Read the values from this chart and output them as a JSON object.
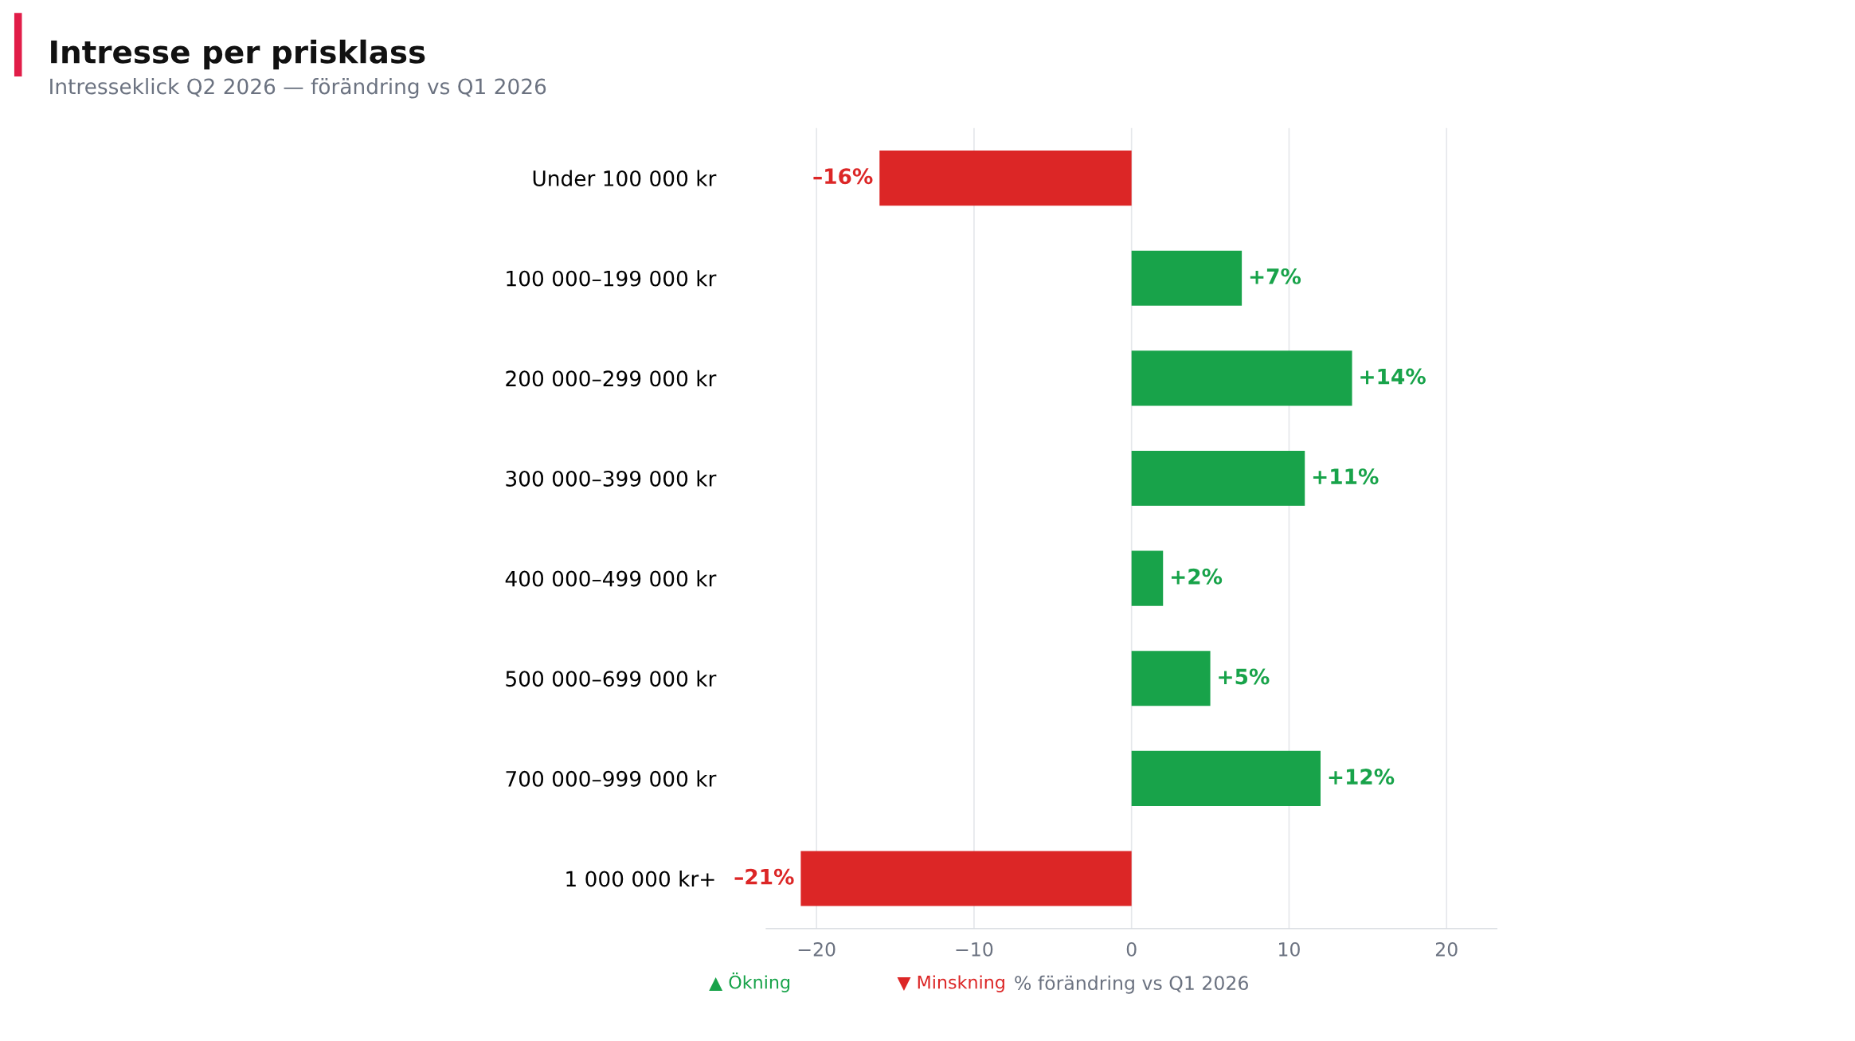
{
  "chart_data": {
    "type": "bar",
    "orientation": "horizontal",
    "title": "Intresse per prisklass",
    "subtitle": "Intresseklick Q2 2026 — förändring vs Q1 2026",
    "xlabel": "% förändring vs Q1 2026",
    "categories": [
      "Under 100 000 kr",
      "100 000–199 000 kr",
      "200 000–299 000 kr",
      "300 000–399 000 kr",
      "400 000–499 000 kr",
      "500 000–699 000 kr",
      "700 000–999 000 kr",
      "1 000 000 kr+"
    ],
    "series": [
      {
        "name": "▲ Ökning",
        "color": "#18a34a",
        "values": [
          null,
          7,
          14,
          11,
          2,
          5,
          12,
          null
        ],
        "value_labels": [
          null,
          "+7%",
          "+14%",
          "+11%",
          "+2%",
          "+5%",
          "+12%",
          null
        ]
      },
      {
        "name": "▼ Minskning",
        "color": "#dc2626",
        "values": [
          -16,
          null,
          null,
          null,
          null,
          null,
          null,
          -21
        ],
        "value_labels": [
          "–16%",
          null,
          null,
          null,
          null,
          null,
          null,
          "–21%"
        ]
      }
    ],
    "xlim": [
      -23.2,
      23.2
    ],
    "xticks": [
      {
        "value": -20,
        "label": "−20"
      },
      {
        "value": -10,
        "label": "−10"
      },
      0,
      10,
      20
    ],
    "grid": "x",
    "legend": "bottom left"
  }
}
